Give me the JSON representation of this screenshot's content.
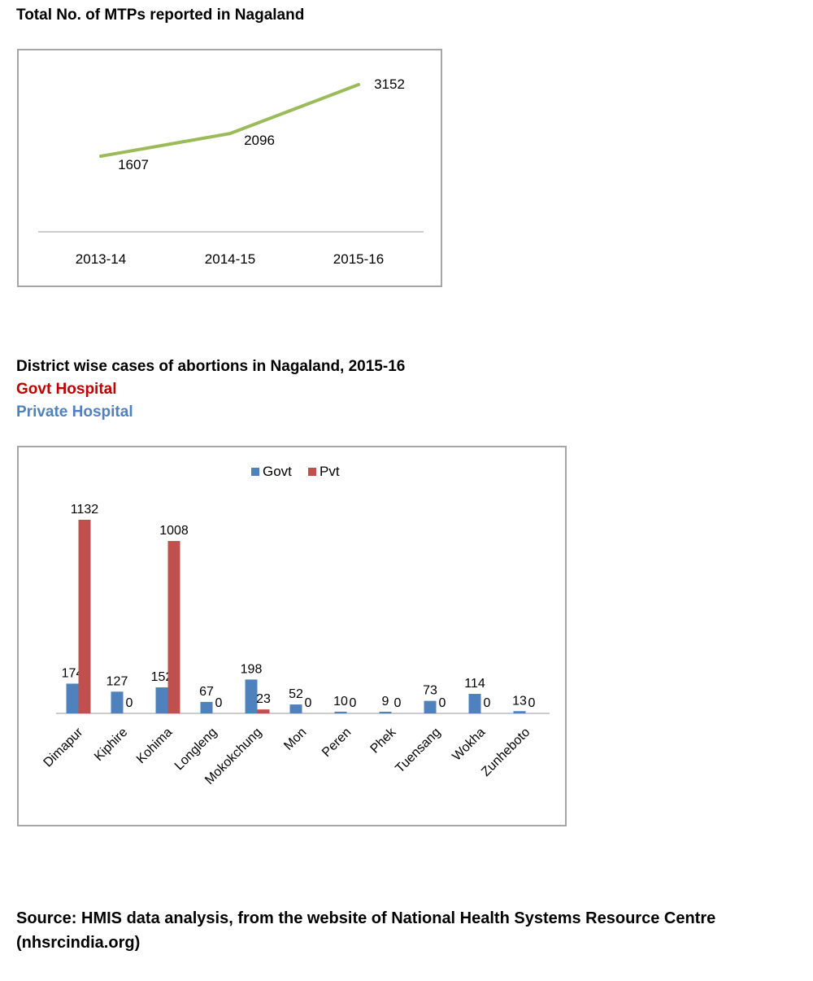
{
  "titles": {
    "line_chart": "Total No. of MTPs reported in Nagaland",
    "bar_chart": "District wise cases of abortions in Nagaland, 2015-16",
    "legend_govt_hospital": "Govt Hospital",
    "legend_private_hospital": "Private Hospital"
  },
  "colors": {
    "line": "#9bbb59",
    "govt": "#4f81bd",
    "pvt": "#c0504d",
    "govt_heading": "#c00000",
    "private_heading": "#4f81bd",
    "axis": "#999999"
  },
  "chart_data": [
    {
      "type": "line",
      "title": "Total No. of MTPs reported in Nagaland",
      "categories": [
        "2013-14",
        "2014-15",
        "2015-16"
      ],
      "values": [
        1607,
        2096,
        3152
      ],
      "data_labels": true,
      "legend": "none",
      "grid": false
    },
    {
      "type": "bar",
      "title": "District wise cases of abortions in Nagaland, 2015-16",
      "categories": [
        "Dimapur",
        "Kiphire",
        "Kohima",
        "Longleng",
        "Mokokchung",
        "Mon",
        "Peren",
        "Phek",
        "Tuensang",
        "Wokha",
        "Zunheboto"
      ],
      "series": [
        {
          "name": "Govt",
          "values": [
            174,
            127,
            152,
            67,
            198,
            52,
            10,
            9,
            73,
            114,
            13
          ]
        },
        {
          "name": "Pvt",
          "values": [
            1132,
            0,
            1008,
            0,
            23,
            0,
            0,
            0,
            0,
            0,
            0
          ]
        }
      ],
      "data_labels": true,
      "legend": "top",
      "grid": false
    }
  ],
  "source": "Source: HMIS data analysis, from the website of National Health Systems Resource Centre (nhsrcindia.org)"
}
